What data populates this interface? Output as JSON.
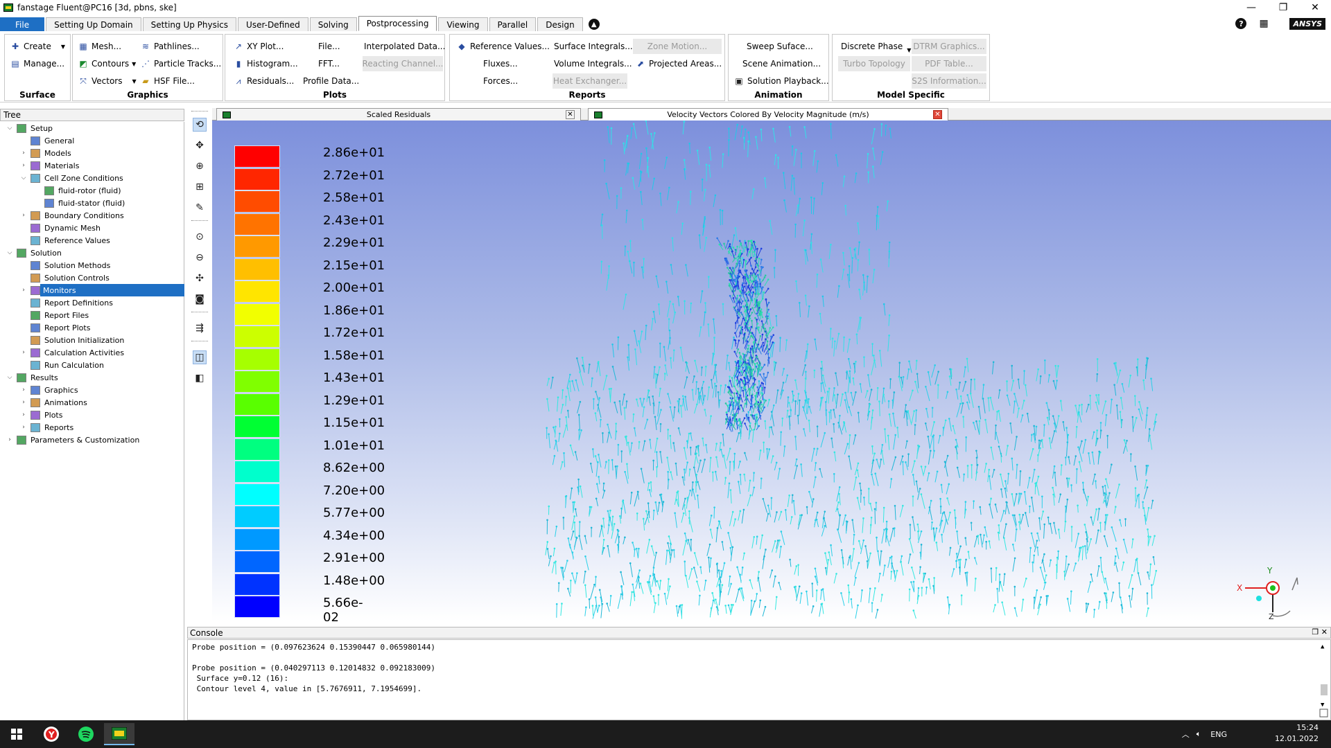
{
  "window": {
    "title": "fanstage Fluent@PC16  [3d, pbns, ske]",
    "controls": [
      "—",
      "❐",
      "✕"
    ]
  },
  "menu": {
    "tabs": [
      "File",
      "Setting Up Domain",
      "Setting Up Physics",
      "User-Defined",
      "Solving",
      "Postprocessing",
      "Viewing",
      "Parallel",
      "Design"
    ],
    "active": "Postprocessing",
    "brand": "ANSYS"
  },
  "ribbon": {
    "surface": {
      "title": "Surface",
      "create": "Create",
      "manage": "Manage..."
    },
    "graphics": {
      "title": "Graphics",
      "mesh": "Mesh...",
      "contours": "Contours",
      "vectors": "Vectors",
      "pathlines": "Pathlines...",
      "particle_tracks": "Particle Tracks...",
      "hsf_file": "HSF File..."
    },
    "plots": {
      "title": "Plots",
      "xy_plot": "XY Plot...",
      "histogram": "Histogram...",
      "residuals": "Residuals...",
      "file": "File...",
      "fft": "FFT...",
      "profile_data": "Profile Data...",
      "interpolated_data": "Interpolated Data...",
      "reacting_channel": "Reacting Channel..."
    },
    "reports": {
      "title": "Reports",
      "reference_values": "Reference Values...",
      "fluxes": "Fluxes...",
      "forces": "Forces...",
      "surface_integrals": "Surface Integrals...",
      "volume_integrals": "Volume Integrals...",
      "heat_exchanger": "Heat Exchanger...",
      "zone_motion": "Zone Motion...",
      "projected_areas": "Projected Areas..."
    },
    "animation": {
      "title": "Animation",
      "sweep_surface": "Sweep Suface...",
      "scene_animation": "Scene Animation...",
      "solution_playback": "Solution Playback..."
    },
    "model_specific": {
      "title": "Model Specific",
      "discrete_phase": "Discrete Phase",
      "turbo_topology": "Turbo Topology",
      "dtrm_graphics": "DTRM Graphics...",
      "pdf_table": "PDF Table...",
      "s2s_information": "S2S Information..."
    }
  },
  "tree": {
    "header": "Tree",
    "items": [
      {
        "label": "Setup",
        "level": 0,
        "exp": "v"
      },
      {
        "label": "General",
        "level": 1,
        "exp": ""
      },
      {
        "label": "Models",
        "level": 1,
        "exp": ">"
      },
      {
        "label": "Materials",
        "level": 1,
        "exp": ">"
      },
      {
        "label": "Cell Zone Conditions",
        "level": 1,
        "exp": "v"
      },
      {
        "label": "fluid-rotor (fluid)",
        "level": 2,
        "exp": ""
      },
      {
        "label": "fluid-stator (fluid)",
        "level": 2,
        "exp": ""
      },
      {
        "label": "Boundary Conditions",
        "level": 1,
        "exp": ">"
      },
      {
        "label": "Dynamic Mesh",
        "level": 1,
        "exp": ""
      },
      {
        "label": "Reference Values",
        "level": 1,
        "exp": ""
      },
      {
        "label": "Solution",
        "level": 0,
        "exp": "v"
      },
      {
        "label": "Solution Methods",
        "level": 1,
        "exp": ""
      },
      {
        "label": "Solution Controls",
        "level": 1,
        "exp": ""
      },
      {
        "label": "Monitors",
        "level": 1,
        "exp": ">"
      },
      {
        "label": "Report Definitions",
        "level": 1,
        "exp": ""
      },
      {
        "label": "Report Files",
        "level": 1,
        "exp": ""
      },
      {
        "label": "Report Plots",
        "level": 1,
        "exp": ""
      },
      {
        "label": "Solution Initialization",
        "level": 1,
        "exp": ""
      },
      {
        "label": "Calculation Activities",
        "level": 1,
        "exp": ">"
      },
      {
        "label": "Run Calculation",
        "level": 1,
        "exp": ""
      },
      {
        "label": "Results",
        "level": 0,
        "exp": "v"
      },
      {
        "label": "Graphics",
        "level": 1,
        "exp": ">"
      },
      {
        "label": "Animations",
        "level": 1,
        "exp": ">"
      },
      {
        "label": "Plots",
        "level": 1,
        "exp": ">"
      },
      {
        "label": "Reports",
        "level": 1,
        "exp": ">"
      },
      {
        "label": "Parameters & Customization",
        "level": 0,
        "exp": ">"
      }
    ],
    "selected": "Monitors"
  },
  "graphics_tabs": {
    "tab1": "Scaled Residuals",
    "tab2": "Velocity Vectors Colored By Velocity Magnitude (m/s)"
  },
  "legend": {
    "labels": [
      "2.86e+01",
      "2.72e+01",
      "2.58e+01",
      "2.43e+01",
      "2.29e+01",
      "2.15e+01",
      "2.00e+01",
      "1.86e+01",
      "1.72e+01",
      "1.58e+01",
      "1.43e+01",
      "1.29e+01",
      "1.15e+01",
      "1.01e+01",
      "8.62e+00",
      "7.20e+00",
      "5.77e+00",
      "4.34e+00",
      "2.91e+00",
      "1.48e+00",
      "5.66e-02"
    ],
    "colors": [
      "#ff0000",
      "#ff2600",
      "#ff4c00",
      "#ff7300",
      "#ff9900",
      "#ffbf00",
      "#ffe500",
      "#f2ff00",
      "#ccff00",
      "#a6ff00",
      "#80ff00",
      "#59ff00",
      "#00ff33",
      "#00ff80",
      "#00ffcc",
      "#00ffff",
      "#00ccff",
      "#0099ff",
      "#0066ff",
      "#0033ff",
      "#0000ff"
    ]
  },
  "axes": {
    "x": "X",
    "y": "Y",
    "z": "Z"
  },
  "console": {
    "title": "Console",
    "lines": [
      "Probe position = (0.097623624 0.15390447 0.065980144)",
      "",
      "Probe position = (0.040297113 0.12014832 0.092183009)",
      " Surface y=0.12 (16):",
      " Contour level 4, value in [5.7676911, 7.1954699]."
    ]
  },
  "taskbar": {
    "lang": "ENG",
    "time": "15:24",
    "date": "12.01.2022"
  }
}
